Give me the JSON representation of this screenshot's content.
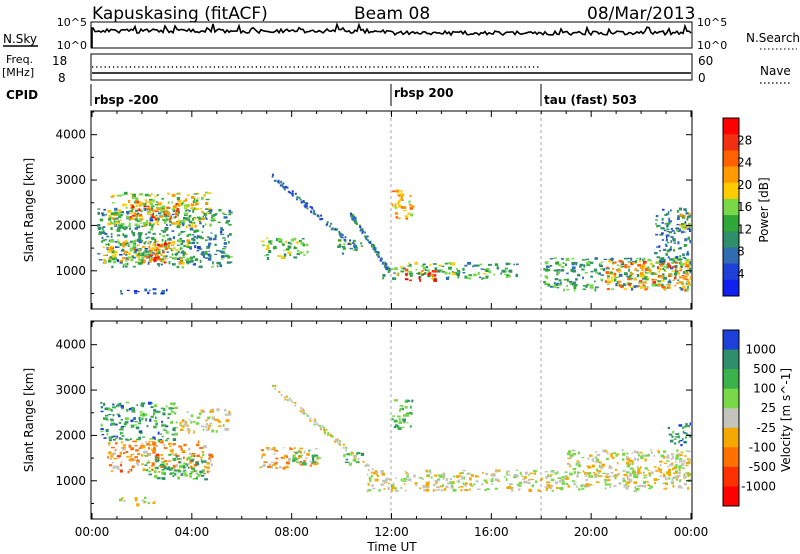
{
  "header": {
    "station": "Kapuskasing (fitACF)",
    "beam": "Beam 08",
    "date": "08/Mar/2013"
  },
  "noise_panel": {
    "left_label": "N.Sky",
    "left_ticks": [
      "10^5",
      "10^0"
    ],
    "right_ticks": [
      "10^5",
      "10^0"
    ],
    "right_label": "N.Search"
  },
  "freq_panel": {
    "left_label_1": "Freq.",
    "left_label_2": "[MHz]",
    "left_ticks": [
      "18",
      "8"
    ],
    "right_ticks": [
      "60",
      "0"
    ],
    "right_label": "Nave"
  },
  "cpid": {
    "label": "CPID",
    "programs": [
      {
        "name": "rbsp -200",
        "start_hour": 0
      },
      {
        "name": "rbsp 200",
        "start_hour": 12
      },
      {
        "name": "tau (fast) 503",
        "start_hour": 18
      }
    ]
  },
  "chart_data": [
    {
      "type": "heatmap",
      "quantity": "Power",
      "ylabel": "Slant Range [km]",
      "yticks": [
        "1000",
        "2000",
        "3000",
        "4000"
      ],
      "ylim": [
        180,
        4500
      ],
      "xlim": [
        0,
        24
      ],
      "colorbar_label": "Power [dB]",
      "colorbar_ticks": [
        "28",
        "24",
        "20",
        "16",
        "12",
        "8",
        "4"
      ],
      "colorbar_colors": [
        "#ff0000",
        "#f03010",
        "#ff6000",
        "#ff9a00",
        "#ffcc00",
        "#78d848",
        "#2fa838",
        "#2e8f6a",
        "#2f6db0",
        "#1e3fd8",
        "#1020f0"
      ],
      "echo_regions": [
        {
          "t0": 0.2,
          "t1": 5.5,
          "r0": 1100,
          "r1": 2400,
          "level": 0.3
        },
        {
          "t0": 0.6,
          "t1": 4.8,
          "r0": 2000,
          "r1": 2750,
          "level": 0.55
        },
        {
          "t0": 1.5,
          "t1": 3.5,
          "r0": 2150,
          "r1": 2550,
          "level": 0.8
        },
        {
          "t0": 0.4,
          "t1": 3.8,
          "r0": 1200,
          "r1": 1700,
          "level": 0.6
        },
        {
          "t0": 2.2,
          "t1": 3.2,
          "r0": 1200,
          "r1": 1650,
          "level": 0.85
        },
        {
          "t0": 1.0,
          "t1": 3.0,
          "r0": 500,
          "r1": 620,
          "level": 0.15
        },
        {
          "t0": 6.7,
          "t1": 8.6,
          "r0": 1300,
          "r1": 1750,
          "level": 0.45
        },
        {
          "t0": 9.8,
          "t1": 10.8,
          "r0": 1400,
          "r1": 1700,
          "level": 0.4
        },
        {
          "t0": 11.6,
          "t1": 17.0,
          "r0": 850,
          "r1": 1200,
          "level": 0.4
        },
        {
          "t0": 12.5,
          "t1": 13.8,
          "r0": 800,
          "r1": 1050,
          "level": 0.9
        },
        {
          "t0": 12.0,
          "t1": 12.8,
          "r0": 2150,
          "r1": 2800,
          "level": 0.65
        },
        {
          "t0": 18.0,
          "t1": 24.0,
          "r0": 600,
          "r1": 1300,
          "level": 0.35
        },
        {
          "t0": 20.5,
          "t1": 24.0,
          "r0": 600,
          "r1": 1250,
          "level": 0.7
        },
        {
          "t0": 22.5,
          "t1": 24.0,
          "r0": 1200,
          "r1": 2400,
          "level": 0.25
        },
        {
          "t0": 23.3,
          "t1": 24.0,
          "r0": 1900,
          "r1": 2300,
          "level": 0.55
        }
      ],
      "echo_streaks": [
        {
          "t0": 7.2,
          "r0": 3100,
          "t1": 10.6,
          "r1": 1500,
          "level": 0.2
        },
        {
          "t0": 10.3,
          "r0": 2300,
          "t1": 11.9,
          "r1": 1000,
          "level": 0.25
        }
      ]
    },
    {
      "type": "heatmap",
      "quantity": "Velocity",
      "ylabel": "Slant Range [km]",
      "yticks": [
        "1000",
        "2000",
        "3000",
        "4000"
      ],
      "ylim": [
        180,
        4500
      ],
      "xlim": [
        0,
        24
      ],
      "xticks": [
        "00:00",
        "04:00",
        "08:00",
        "12:00",
        "16:00",
        "20:00",
        "00:00"
      ],
      "xlabel": "Time UT",
      "colorbar_label": "Velocity [m s^-1]",
      "colorbar_ticks": [
        "1000",
        "500",
        "100",
        "25",
        "-25",
        "-100",
        "-500",
        "-1000"
      ],
      "colorbar_colors": [
        "#1e3fd8",
        "#2e8f6a",
        "#3cb24a",
        "#78d848",
        "#c4c4bc",
        "#f5a800",
        "#ff7000",
        "#ff3000",
        "#ff0000"
      ],
      "echo_regions": [
        {
          "t0": 0.3,
          "t1": 3.4,
          "r0": 1900,
          "r1": 2750,
          "level": 0.8
        },
        {
          "t0": 0.6,
          "t1": 4.8,
          "r0": 1200,
          "r1": 1900,
          "level": 0.35
        },
        {
          "t0": 2.0,
          "t1": 4.5,
          "r0": 1050,
          "r1": 1600,
          "level": 0.75
        },
        {
          "t0": 1.0,
          "t1": 2.5,
          "r0": 500,
          "r1": 650,
          "level": 0.5
        },
        {
          "t0": 3.5,
          "t1": 5.5,
          "r0": 2100,
          "r1": 2600,
          "level": 0.5
        },
        {
          "t0": 6.7,
          "t1": 9.0,
          "r0": 1300,
          "r1": 1750,
          "level": 0.4
        },
        {
          "t0": 8.0,
          "t1": 9.2,
          "r0": 1400,
          "r1": 1700,
          "level": 0.75
        },
        {
          "t0": 10.0,
          "t1": 10.8,
          "r0": 1400,
          "r1": 1700,
          "level": 0.75
        },
        {
          "t0": 12.0,
          "t1": 12.8,
          "r0": 2150,
          "r1": 2800,
          "level": 0.75
        },
        {
          "t0": 11.0,
          "t1": 24.0,
          "r0": 800,
          "r1": 1250,
          "level": 0.5
        },
        {
          "t0": 19.0,
          "t1": 24.0,
          "r0": 1100,
          "r1": 1700,
          "level": 0.5
        },
        {
          "t0": 23.0,
          "t1": 24.0,
          "r0": 1800,
          "r1": 2300,
          "level": 0.85
        }
      ],
      "echo_streaks": [
        {
          "t0": 7.2,
          "r0": 3100,
          "t1": 11.5,
          "r1": 1100,
          "level": 0.5
        }
      ]
    }
  ]
}
